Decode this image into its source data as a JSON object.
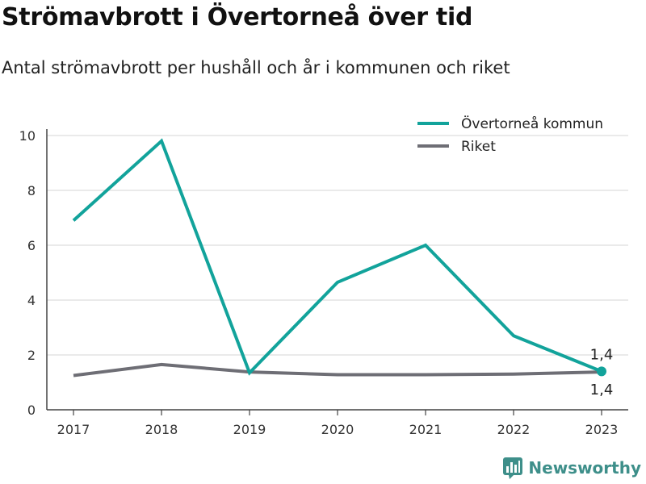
{
  "title": "Strömavbrott i Övertorneå över tid",
  "subtitle": "Antal strömavbrott per hushåll och år i kommunen och riket",
  "brand": "Newsworthy",
  "colors": {
    "kommun": "#12a39b",
    "riket": "#6e6e75",
    "grid": "#d4d4d4",
    "axis": "#444444"
  },
  "chart_data": {
    "type": "line",
    "x": [
      "2017",
      "2018",
      "2019",
      "2020",
      "2021",
      "2022",
      "2023"
    ],
    "ylim": [
      0,
      10
    ],
    "yticks": [
      0,
      2,
      4,
      6,
      8,
      10
    ],
    "grid": true,
    "legend_position": "top-right",
    "series": [
      {
        "name": "Övertorneå kommun",
        "color": "#12a39b",
        "values": [
          6.9,
          9.8,
          1.35,
          4.65,
          6.0,
          2.7,
          1.4
        ]
      },
      {
        "name": "Riket",
        "color": "#6e6e75",
        "values": [
          1.25,
          1.65,
          1.38,
          1.28,
          1.28,
          1.3,
          1.38
        ]
      }
    ],
    "annotations": [
      {
        "series": 0,
        "x": "2023",
        "text": "1,4",
        "position": "above"
      },
      {
        "series": 1,
        "x": "2023",
        "text": "1,4",
        "position": "below"
      }
    ]
  }
}
